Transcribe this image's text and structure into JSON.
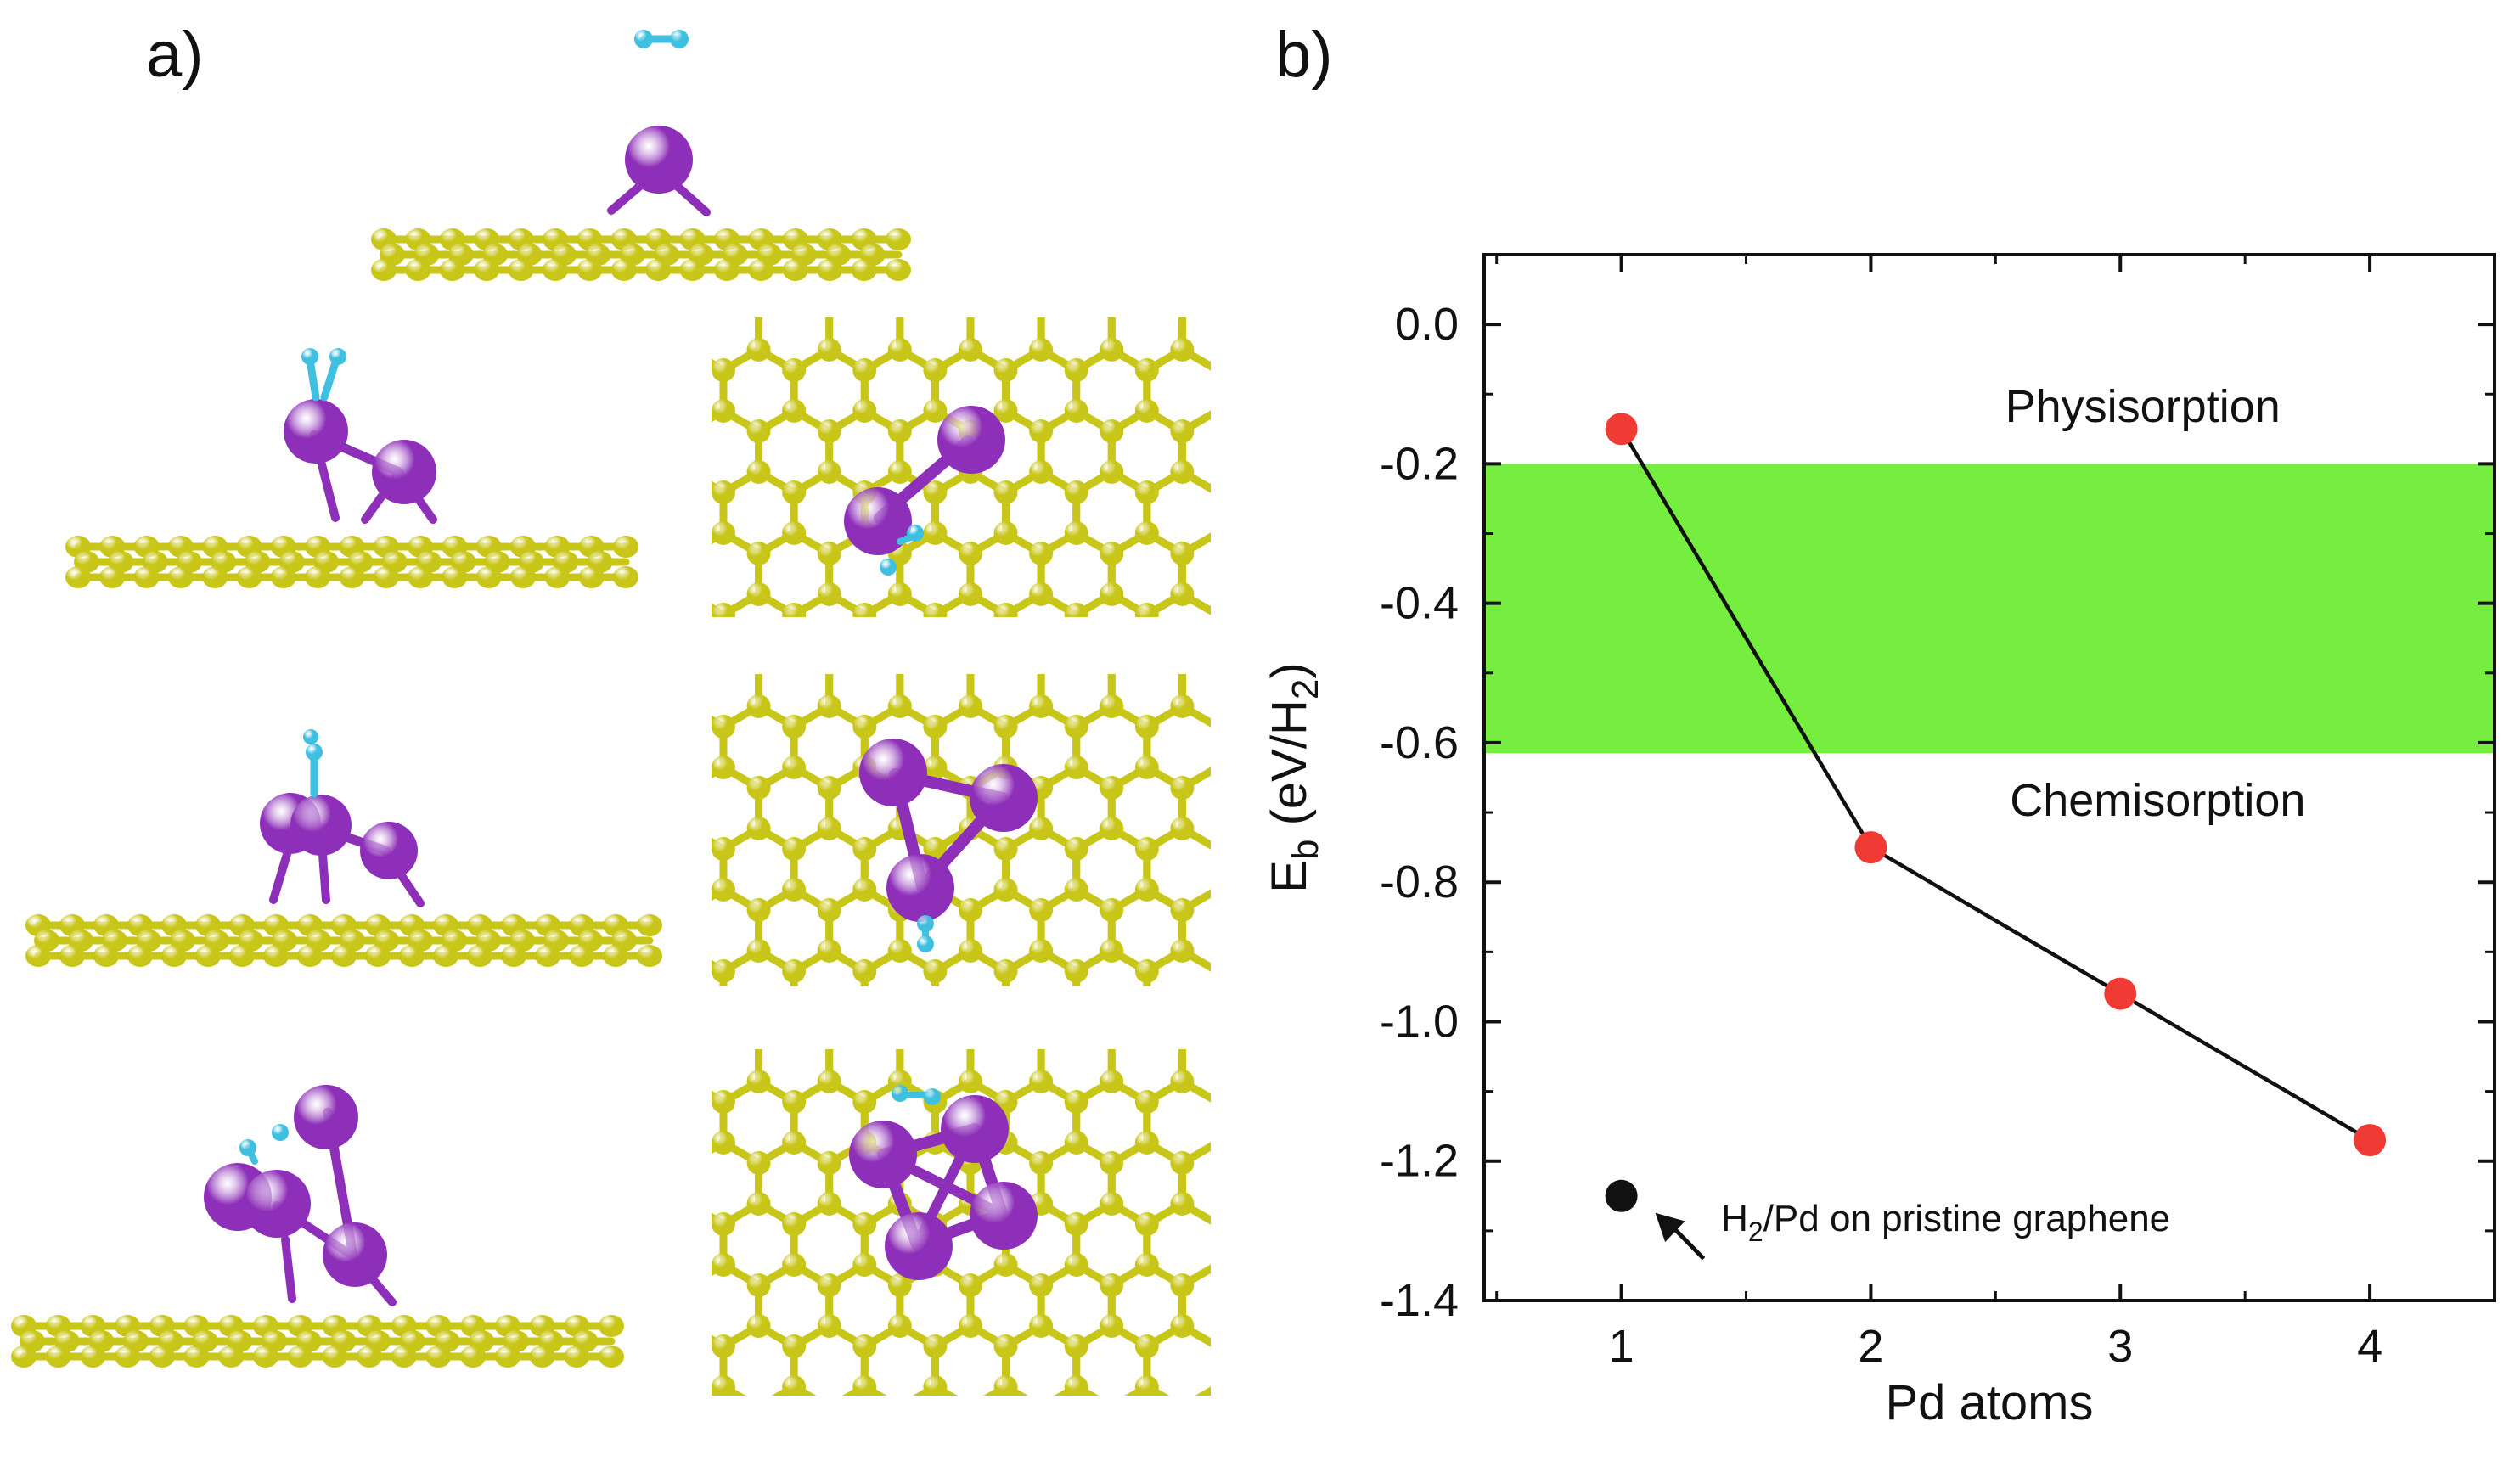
{
  "figure": {
    "panel_a_label": "a)",
    "panel_b_label": "b)"
  },
  "panel_a": {
    "type": "molecular structure renderings",
    "rows": [
      {
        "pd_atoms": 1,
        "views": [
          "side"
        ]
      },
      {
        "pd_atoms": 2,
        "views": [
          "side",
          "top"
        ]
      },
      {
        "pd_atoms": 3,
        "views": [
          "side",
          "top"
        ]
      },
      {
        "pd_atoms": 4,
        "views": [
          "side",
          "top"
        ]
      }
    ],
    "colors": {
      "carbon": "#c9c61a",
      "palladium": "#8d2fb8",
      "hydrogen": "#3fc0e0"
    }
  },
  "chart_data": {
    "type": "scatter",
    "xlabel": "Pd atoms",
    "ylabel_main": "E",
    "ylabel_sub1": "b",
    "ylabel_mid": " (eV/H",
    "ylabel_sub2": "2",
    "ylabel_end": ")",
    "xlim": [
      0.45,
      4.5
    ],
    "ylim": [
      -1.4,
      0.1
    ],
    "xticks": [
      1,
      2,
      3,
      4
    ],
    "xtick_labels": [
      "1",
      "2",
      "3",
      "4"
    ],
    "yticks": [
      0.0,
      -0.2,
      -0.4,
      -0.6,
      -0.8,
      -1.0,
      -1.2,
      -1.4
    ],
    "ytick_labels": [
      "0.0",
      "-0.2",
      "-0.4",
      "-0.6",
      "-0.8",
      "-1.0",
      "-1.2",
      "-1.4"
    ],
    "band": {
      "y_from": -0.2,
      "y_to": -0.615,
      "color": "#76ee3f"
    },
    "series": [
      {
        "x": [
          1,
          2,
          3,
          4
        ],
        "y": [
          -0.15,
          -0.75,
          -0.96,
          -1.17
        ],
        "marker_color": "#ef3b33",
        "line_color": "#111111"
      },
      {
        "x": [
          1
        ],
        "y": [
          -1.25
        ],
        "marker_color": "#111111"
      }
    ],
    "annotations": {
      "physisorption": "Physisorption",
      "chemisorption": "Chemisorption",
      "pristine_pre": "H",
      "pristine_sub": "2",
      "pristine_post": "/Pd on pristine graphene"
    }
  }
}
